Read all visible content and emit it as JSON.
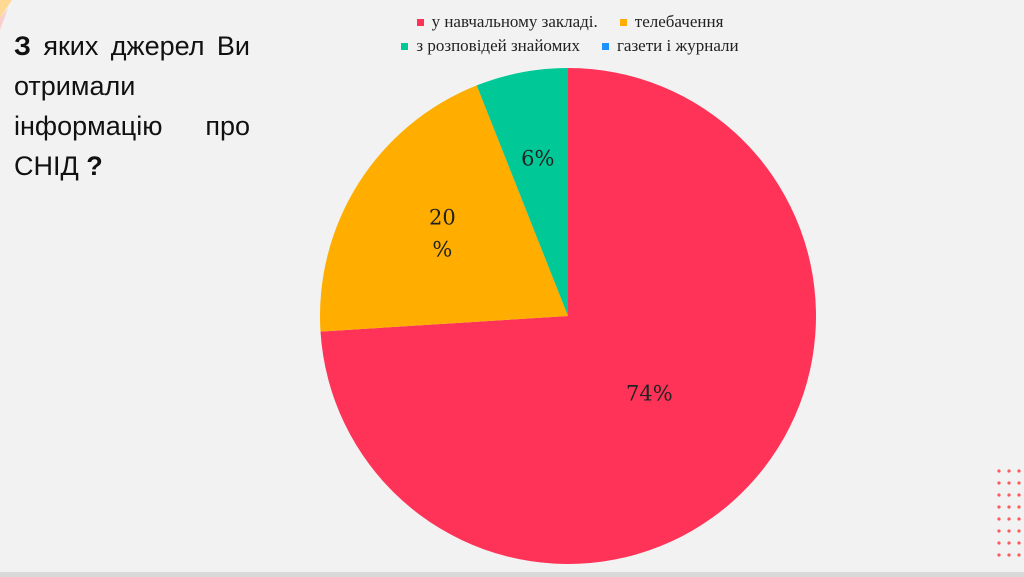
{
  "slide": {
    "question_bold": "З",
    "question_rest": " яких джерел Ви отримали інформацію про СНІД ",
    "question_mark": "?"
  },
  "chart_data": {
    "type": "pie",
    "title": "",
    "categories": [
      "у навчальному закладі.",
      "телебачення",
      "з розповідей знайомих",
      "газети і журнали"
    ],
    "values": [
      74,
      20,
      6,
      0
    ],
    "labels": [
      "74%",
      "20 %",
      "6%",
      ""
    ],
    "colors": [
      "#ff3358",
      "#ffae00",
      "#00c896",
      "#1e90ff"
    ],
    "start_angle_deg": 0,
    "direction": "clockwise",
    "legend_position": "top"
  },
  "decor": {
    "accent_color": "#ff5a5a",
    "corner_color": "#ffd27a"
  }
}
